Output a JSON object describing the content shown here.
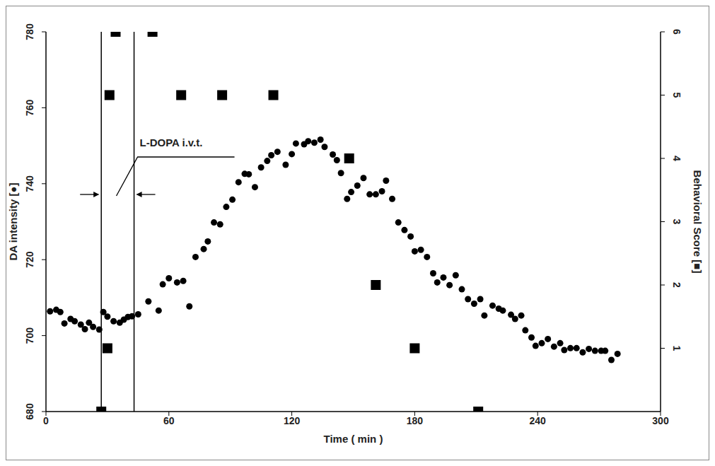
{
  "chart_data": {
    "type": "scatter",
    "x_label": "Time ( min )",
    "y_label": "DA intensity [●]",
    "y2_label": "Behavioral Score [■]",
    "xlim": [
      0,
      300
    ],
    "xticks": [
      0,
      60,
      120,
      180,
      240,
      300
    ],
    "ylim": [
      680,
      780
    ],
    "yticks": [
      680,
      700,
      720,
      740,
      760,
      780
    ],
    "y2lim": [
      0,
      6
    ],
    "y2ticks": [
      1,
      2,
      3,
      4,
      5,
      6
    ],
    "annotations": [
      {
        "text": "L-DOPA i.v.t.",
        "x": [
          27,
          43
        ]
      }
    ],
    "series": [
      {
        "color": "#000000",
        "marker": "circle",
        "x": [
          2,
          5,
          7,
          9,
          12,
          14,
          17,
          19,
          21,
          23,
          26,
          28,
          30,
          33,
          36,
          38,
          40,
          42,
          45,
          50,
          55,
          57,
          60,
          64,
          67,
          70,
          73,
          77,
          79,
          82,
          85,
          88,
          91,
          94,
          97,
          99,
          102,
          105,
          108,
          110,
          113,
          117,
          120,
          122,
          126,
          128,
          131,
          134,
          136,
          140,
          142,
          144,
          147,
          149,
          152,
          155,
          158,
          161,
          164,
          166,
          169,
          172,
          175,
          178,
          180,
          183,
          186,
          189,
          191,
          194,
          197,
          200,
          203,
          206,
          209,
          212,
          214,
          218,
          221,
          223,
          227,
          229,
          232,
          234,
          237,
          239,
          242,
          245,
          248,
          251,
          253,
          256,
          259,
          262,
          265,
          268,
          271,
          273,
          276,
          279
        ],
        "values": [
          706.4,
          706.8,
          706.2,
          703.2,
          704.4,
          703.8,
          702.9,
          701.7,
          703.4,
          702.3,
          701.6,
          706.2,
          705,
          703.8,
          703.4,
          704.2,
          704.9,
          705.1,
          705.6,
          709,
          706.6,
          713.5,
          715.1,
          714,
          714.4,
          707.7,
          720.7,
          722.8,
          724.8,
          729.8,
          729.3,
          733.9,
          735.8,
          740.4,
          742.6,
          742.5,
          739.1,
          744.3,
          746,
          747.5,
          748.4,
          745,
          747.8,
          750.6,
          750.4,
          751.2,
          750.8,
          751.6,
          749.7,
          747.7,
          746.2,
          742.8,
          736,
          737.8,
          739.5,
          741.5,
          737.2,
          737.2,
          738,
          740.8,
          736,
          729.8,
          727.8,
          726.1,
          722.2,
          722.6,
          720.7,
          716.4,
          714,
          715.3,
          713.3,
          715.9,
          712.2,
          709.6,
          708.4,
          709.6,
          705.3,
          707.9,
          707.1,
          706.6,
          705.5,
          704.4,
          705.3,
          701.4,
          699.5,
          697.3,
          698,
          699.1,
          697.1,
          698,
          696.2,
          696.7,
          696.7,
          695.6,
          696.5,
          696,
          696,
          696,
          693.6,
          695.2
        ]
      },
      {
        "axis": "y2",
        "color": "#000000",
        "marker": "square",
        "x": [
          27,
          30,
          31,
          34,
          52,
          66,
          86,
          111,
          148,
          161,
          180,
          211
        ],
        "values": [
          0,
          1,
          5,
          6,
          6,
          5,
          5,
          5,
          4,
          2,
          1,
          0
        ]
      }
    ]
  }
}
